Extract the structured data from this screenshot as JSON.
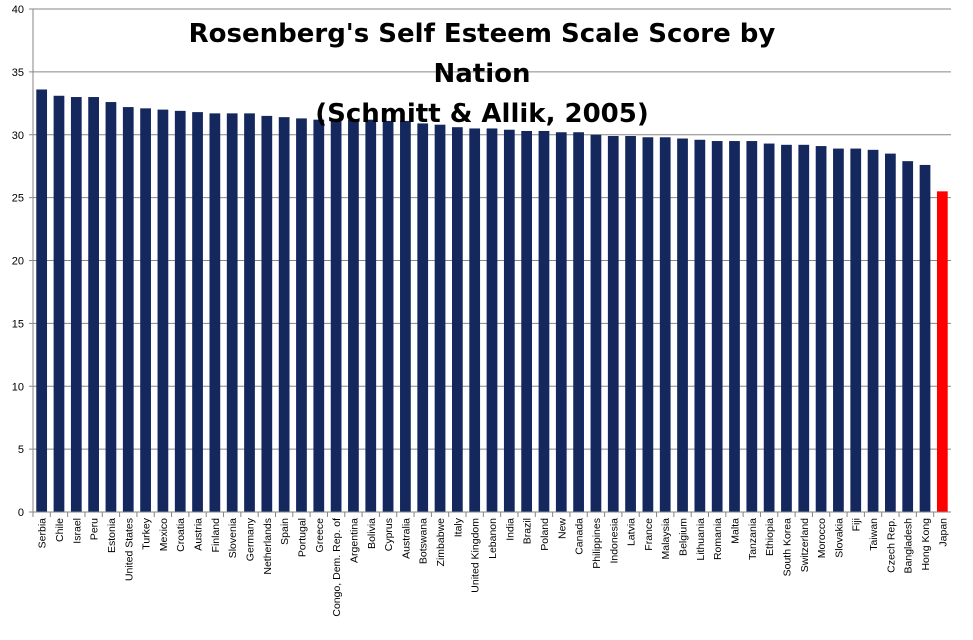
{
  "chart_data": {
    "type": "bar",
    "title": "Rosenberg's Self Esteem Scale Score by Nation\n(Schmitt & Allik, 2005)",
    "xlabel": "",
    "ylabel": "",
    "ylim": [
      0,
      40
    ],
    "yticks": [
      0,
      5,
      10,
      15,
      20,
      25,
      30,
      35,
      40
    ],
    "grid": true,
    "legend": "none",
    "categories": [
      "Serbia",
      "Chile",
      "Israel",
      "Peru",
      "Estonia",
      "United States",
      "Turkey",
      "Mexico",
      "Croatia",
      "Austria",
      "Finland",
      "Slovenia",
      "Germany",
      "Netherlands",
      "Spain",
      "Portugal",
      "Greece",
      "Congo, Dem. Rep. of",
      "Argentina",
      "Bolivia",
      "Cyprus",
      "Australia",
      "Botswana",
      "Zimbabwe",
      "Italy",
      "United Kingdom",
      "Lebanon",
      "India",
      "Brazil",
      "Poland",
      "New",
      "Canada",
      "Philippines",
      "Indonesia",
      "Latvia",
      "France",
      "Malaysia",
      "Belgium",
      "Lithuania",
      "Romania",
      "Malta",
      "Tanzania",
      "Ethiopia",
      "South Korea",
      "Switzerland",
      "Morocco",
      "Slovakia",
      "Fiji",
      "Taiwan",
      "Czech Rep.",
      "Bangladesh",
      "Hong Kong",
      "Japan"
    ],
    "values": [
      33.6,
      33.1,
      33.0,
      33.0,
      32.6,
      32.2,
      32.1,
      32.0,
      31.9,
      31.8,
      31.7,
      31.7,
      31.7,
      31.5,
      31.4,
      31.3,
      31.2,
      31.2,
      31.2,
      31.2,
      31.1,
      31.1,
      30.9,
      30.8,
      30.6,
      30.5,
      30.5,
      30.4,
      30.3,
      30.3,
      30.2,
      30.2,
      30.0,
      29.9,
      29.9,
      29.8,
      29.8,
      29.7,
      29.6,
      29.5,
      29.5,
      29.5,
      29.3,
      29.2,
      29.2,
      29.1,
      28.9,
      28.9,
      28.8,
      28.5,
      27.9,
      27.6,
      25.5
    ],
    "highlight_category": "Japan",
    "colors": {
      "bar": "#14285e",
      "highlight": "#ff0000",
      "grid": "#868686",
      "axis": "#868686"
    }
  }
}
